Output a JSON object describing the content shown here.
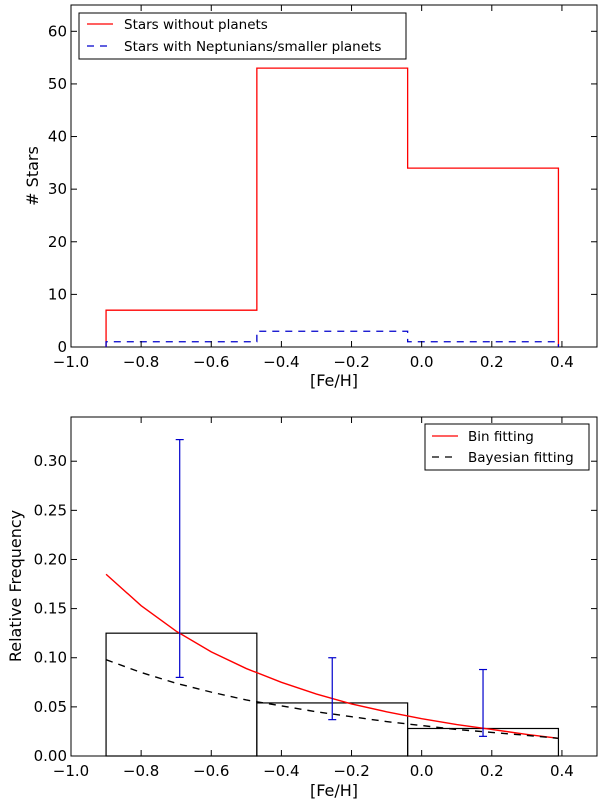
{
  "colors": {
    "red": "#ff0000",
    "blue": "#0000cc",
    "black": "#000000"
  },
  "chart_data": [
    {
      "type": "histogram",
      "xlabel": "[Fe/H]",
      "ylabel": "# Stars",
      "xlim": [
        -1.0,
        0.5
      ],
      "ylim": [
        0,
        65
      ],
      "xticks": [
        -1.0,
        -0.8,
        -0.6,
        -0.4,
        -0.2,
        0.0,
        0.2,
        0.4
      ],
      "xtick_labels": [
        "−1.0",
        "−0.8",
        "−0.6",
        "−0.4",
        "−0.2",
        "0.0",
        "0.2",
        "0.4"
      ],
      "yticks": [
        0,
        10,
        20,
        30,
        40,
        50,
        60
      ],
      "ytick_labels": [
        "0",
        "10",
        "20",
        "30",
        "40",
        "50",
        "60"
      ],
      "bin_edges": [
        -0.9,
        -0.47,
        -0.04,
        0.39
      ],
      "series": [
        {
          "name": "Stars without planets",
          "style": "solid",
          "color": "#ff0000",
          "values": [
            7,
            53,
            34
          ]
        },
        {
          "name": "Stars with Neptunians/smaller planets",
          "style": "dashed",
          "color": "#0000cc",
          "values": [
            1,
            3,
            1
          ]
        }
      ],
      "legend": "top-left"
    },
    {
      "type": "bar",
      "xlabel": "[Fe/H]",
      "ylabel": "Relative Frequency",
      "xlim": [
        -1.0,
        0.5
      ],
      "ylim": [
        0,
        0.345
      ],
      "xticks": [
        -1.0,
        -0.8,
        -0.6,
        -0.4,
        -0.2,
        0.0,
        0.2,
        0.4
      ],
      "xtick_labels": [
        "−1.0",
        "−0.8",
        "−0.6",
        "−0.4",
        "−0.2",
        "0.0",
        "0.2",
        "0.4"
      ],
      "yticks": [
        0.0,
        0.05,
        0.1,
        0.15,
        0.2,
        0.25,
        0.3
      ],
      "ytick_labels": [
        "0.00",
        "0.05",
        "0.10",
        "0.15",
        "0.20",
        "0.25",
        "0.30"
      ],
      "bin_edges": [
        -0.9,
        -0.47,
        -0.04,
        0.39
      ],
      "bars": [
        0.125,
        0.054,
        0.028
      ],
      "error_bars": [
        {
          "x": -0.69,
          "low": 0.08,
          "high": 0.322
        },
        {
          "x": -0.255,
          "low": 0.037,
          "high": 0.1
        },
        {
          "x": 0.175,
          "low": 0.02,
          "high": 0.088
        }
      ],
      "curves": [
        {
          "name": "Bin fitting",
          "style": "solid",
          "color": "#ff0000",
          "x": [
            -0.9,
            -0.8,
            -0.7,
            -0.6,
            -0.5,
            -0.4,
            -0.3,
            -0.2,
            -0.1,
            0.0,
            0.1,
            0.2,
            0.3,
            0.39
          ],
          "y": [
            0.185,
            0.153,
            0.127,
            0.106,
            0.089,
            0.075,
            0.063,
            0.053,
            0.045,
            0.038,
            0.032,
            0.027,
            0.022,
            0.018
          ]
        },
        {
          "name": "Bayesian fitting",
          "style": "dashed",
          "color": "#000000",
          "x": [
            -0.9,
            -0.8,
            -0.7,
            -0.6,
            -0.5,
            -0.4,
            -0.3,
            -0.2,
            -0.1,
            0.0,
            0.1,
            0.2,
            0.3,
            0.39
          ],
          "y": [
            0.098,
            0.085,
            0.074,
            0.065,
            0.057,
            0.051,
            0.045,
            0.04,
            0.035,
            0.031,
            0.027,
            0.024,
            0.021,
            0.018
          ]
        }
      ],
      "legend": "top-right"
    }
  ]
}
